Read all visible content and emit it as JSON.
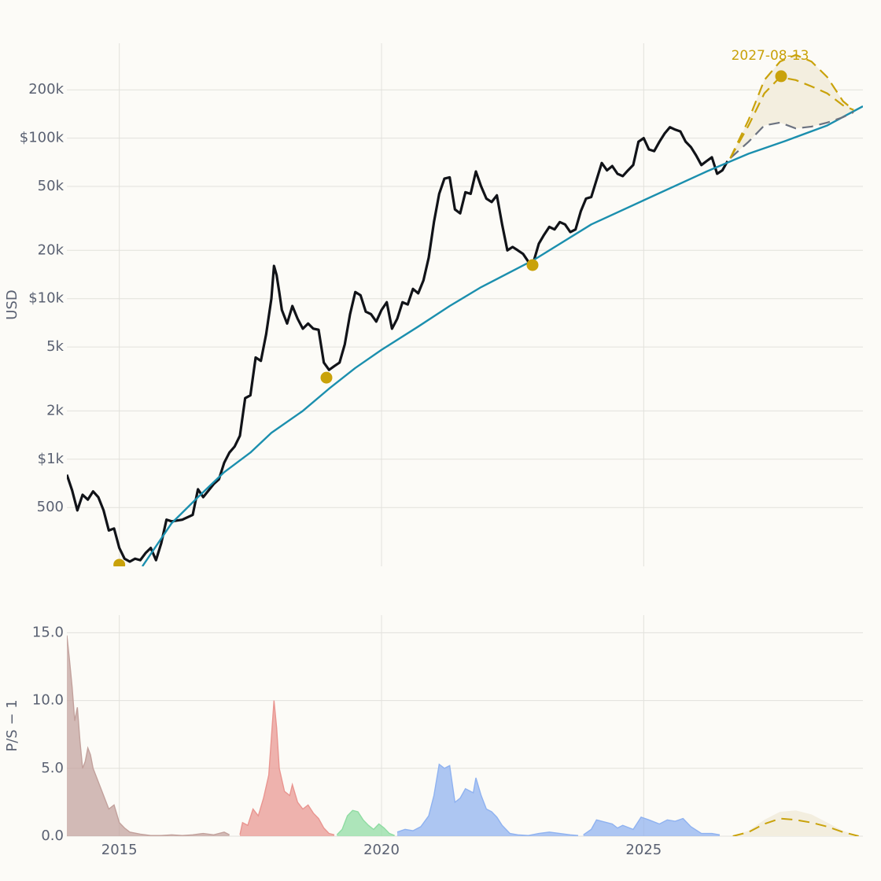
{
  "chart_data": [
    {
      "type": "line",
      "ylabel": "USD",
      "y_scale": "log",
      "grid": true,
      "xlim": [
        2014.0,
        2029.18
      ],
      "xticks": [
        2015,
        2020,
        2025
      ],
      "ylim": [
        215,
        390000
      ],
      "yticks": [
        500,
        {
          "value": 1000,
          "label": "$1k"
        },
        {
          "value": 2000,
          "label": "2k"
        },
        {
          "value": 5000,
          "label": "5k"
        },
        {
          "value": 10000,
          "label": "$10k"
        },
        {
          "value": 20000,
          "label": "20k"
        },
        {
          "value": 50000,
          "label": "50k"
        },
        {
          "value": 100000,
          "label": "$100k"
        },
        {
          "value": 200000,
          "label": "200k"
        }
      ],
      "series": [
        {
          "color": "#111318",
          "width": 3.2,
          "x": [
            2014.0,
            2014.1,
            2014.2,
            2014.3,
            2014.4,
            2014.5,
            2014.6,
            2014.7,
            2014.8,
            2014.9,
            2015.0,
            2015.1,
            2015.2,
            2015.3,
            2015.4,
            2015.5,
            2015.6,
            2015.7,
            2015.8,
            2015.9,
            2016.0,
            2016.2,
            2016.4,
            2016.5,
            2016.6,
            2016.8,
            2016.9,
            2017.0,
            2017.1,
            2017.2,
            2017.3,
            2017.4,
            2017.5,
            2017.6,
            2017.7,
            2017.8,
            2017.9,
            2017.95,
            2018.0,
            2018.05,
            2018.1,
            2018.2,
            2018.3,
            2018.4,
            2018.5,
            2018.6,
            2018.7,
            2018.8,
            2018.9,
            2019.0,
            2019.1,
            2019.2,
            2019.3,
            2019.4,
            2019.5,
            2019.6,
            2019.7,
            2019.8,
            2019.9,
            2020.0,
            2020.1,
            2020.2,
            2020.3,
            2020.4,
            2020.5,
            2020.6,
            2020.7,
            2020.8,
            2020.9,
            2021.0,
            2021.1,
            2021.2,
            2021.3,
            2021.4,
            2021.5,
            2021.6,
            2021.7,
            2021.8,
            2021.9,
            2022.0,
            2022.1,
            2022.2,
            2022.3,
            2022.4,
            2022.5,
            2022.6,
            2022.7,
            2022.8,
            2022.9,
            2023.0,
            2023.1,
            2023.2,
            2023.3,
            2023.4,
            2023.5,
            2023.6,
            2023.7,
            2023.8,
            2023.9,
            2024.0,
            2024.2,
            2024.3,
            2024.4,
            2024.5,
            2024.6,
            2024.7,
            2024.8,
            2024.9,
            2025.0,
            2025.1,
            2025.2,
            2025.3,
            2025.4,
            2025.5,
            2025.6,
            2025.7,
            2025.8,
            2025.9,
            2026.0,
            2026.1,
            2026.2,
            2026.3,
            2026.4,
            2026.5,
            2026.6
          ],
          "values": [
            800,
            640,
            480,
            600,
            560,
            630,
            580,
            480,
            360,
            370,
            280,
            240,
            230,
            240,
            235,
            260,
            280,
            235,
            300,
            420,
            410,
            420,
            450,
            650,
            580,
            700,
            750,
            950,
            1100,
            1200,
            1400,
            2400,
            2500,
            4300,
            4100,
            6000,
            10000,
            16000,
            14000,
            11000,
            8500,
            7000,
            9000,
            7500,
            6500,
            7000,
            6500,
            6400,
            4000,
            3600,
            3800,
            4000,
            5200,
            8000,
            11000,
            10500,
            8300,
            8000,
            7200,
            8500,
            9500,
            6500,
            7500,
            9500,
            9200,
            11500,
            10800,
            13000,
            18000,
            30000,
            45000,
            56000,
            57000,
            36000,
            34000,
            46000,
            45000,
            62000,
            50000,
            42000,
            40000,
            44000,
            29000,
            20000,
            21000,
            20000,
            19000,
            17000,
            17000,
            22000,
            25000,
            28000,
            27000,
            30000,
            29000,
            26000,
            27000,
            35000,
            42000,
            43000,
            70000,
            63000,
            67000,
            60000,
            58000,
            63000,
            68000,
            95000,
            100000,
            85000,
            83000,
            95000,
            107000,
            117000,
            113000,
            110000,
            95000,
            88000,
            78000,
            68000,
            72000,
            76000,
            60000,
            63000,
            72000
          ]
        },
        {
          "color": "#1b8fae",
          "width": 2.4,
          "x": [
            2015.44,
            2016.0,
            2016.5,
            2017.0,
            2017.5,
            2017.9,
            2018.5,
            2019.0,
            2019.5,
            2020.0,
            2020.7,
            2021.3,
            2021.9,
            2022.9,
            2024.0,
            2025.0,
            2026.2,
            2027.0,
            2027.7,
            2028.5,
            2029.18
          ],
          "values": [
            215,
            400,
            580,
            830,
            1100,
            1460,
            2000,
            2750,
            3700,
            4800,
            6700,
            9000,
            11800,
            17400,
            29000,
            41000,
            62000,
            80000,
            96000,
            120000,
            158000
          ]
        }
      ],
      "forecast": {
        "color": "#c9a20a",
        "low_color": "#6b7280",
        "fill": "#f3eedf",
        "x": [
          2026.65,
          2027.0,
          2027.3,
          2027.6,
          2027.9,
          2028.2,
          2028.5,
          2028.8,
          2029.0
        ],
        "high": [
          75000,
          130000,
          230000,
          300000,
          330000,
          300000,
          240000,
          170000,
          150000
        ],
        "mid": [
          75000,
          120000,
          190000,
          240000,
          230000,
          210000,
          190000,
          160000,
          150000
        ],
        "low": [
          75000,
          95000,
          120000,
          125000,
          115000,
          118000,
          125000,
          135000,
          145000
        ]
      },
      "markers": {
        "color": "#c9a20a",
        "x": [
          2015.0,
          2018.95,
          2022.88,
          2027.62
        ],
        "values": [
          220,
          3220,
          16200,
          243000
        ],
        "labels": [
          null,
          null,
          null,
          "2027-08-13"
        ]
      }
    },
    {
      "type": "area",
      "ylabel": "P/S − 1",
      "grid": true,
      "xlim": [
        2014.0,
        2029.18
      ],
      "xticks": [
        2015,
        2020,
        2025
      ],
      "ylim": [
        0,
        16.3
      ],
      "yticks": [
        {
          "value": 0,
          "label": "0.0"
        },
        {
          "value": 5,
          "label": "5.0"
        },
        {
          "value": 10,
          "label": "10.0"
        },
        {
          "value": 15,
          "label": "15.0"
        }
      ],
      "series": [
        {
          "color": "#c2a19c",
          "x": [
            2014.0,
            2014.05,
            2014.1,
            2014.15,
            2014.2,
            2014.25,
            2014.3,
            2014.35,
            2014.4,
            2014.45,
            2014.5,
            2014.6,
            2014.7,
            2014.8,
            2014.9,
            2015.0,
            2015.1,
            2015.2,
            2015.4,
            2015.6,
            2015.8,
            2016.0,
            2016.2,
            2016.4,
            2016.6,
            2016.8,
            2017.0,
            2017.1
          ],
          "values": [
            14.8,
            13,
            11,
            8.5,
            9.5,
            7,
            5,
            5.5,
            6.5,
            6,
            5,
            4,
            3,
            2,
            2.3,
            1,
            0.6,
            0.3,
            0.15,
            0.05,
            0.05,
            0.1,
            0.05,
            0.1,
            0.2,
            0.1,
            0.3,
            0.1
          ]
        },
        {
          "color": "#e99590",
          "x": [
            2017.3,
            2017.35,
            2017.45,
            2017.55,
            2017.65,
            2017.75,
            2017.85,
            2017.95,
            2018.0,
            2018.05,
            2018.15,
            2018.25,
            2018.3,
            2018.4,
            2018.5,
            2018.6,
            2018.7,
            2018.8,
            2018.9,
            2019.0,
            2019.1
          ],
          "values": [
            0.1,
            1,
            0.8,
            2,
            1.5,
            2.8,
            4.5,
            10,
            8,
            5,
            3.3,
            3,
            3.8,
            2.5,
            2,
            2.3,
            1.7,
            1.3,
            0.6,
            0.2,
            0.1
          ]
        },
        {
          "color": "#8fdca2",
          "x": [
            2019.15,
            2019.25,
            2019.35,
            2019.45,
            2019.55,
            2019.65,
            2019.75,
            2019.85,
            2019.95,
            2020.05,
            2020.15,
            2020.25
          ],
          "values": [
            0.1,
            0.5,
            1.5,
            1.9,
            1.8,
            1.2,
            0.8,
            0.5,
            0.9,
            0.6,
            0.2,
            0.05
          ]
        },
        {
          "color": "#8fb2f0",
          "x": [
            2020.3,
            2020.45,
            2020.6,
            2020.75,
            2020.9,
            2021.0,
            2021.1,
            2021.2,
            2021.3,
            2021.4,
            2021.5,
            2021.6,
            2021.75,
            2021.8,
            2021.9,
            2022.0,
            2022.1,
            2022.2,
            2022.3,
            2022.45,
            2022.6,
            2022.8,
            2023.0,
            2023.2,
            2023.4,
            2023.6,
            2023.75
          ],
          "values": [
            0.3,
            0.5,
            0.4,
            0.7,
            1.5,
            3,
            5.3,
            5,
            5.2,
            2.5,
            2.8,
            3.5,
            3.2,
            4.3,
            3,
            2,
            1.8,
            1.4,
            0.8,
            0.2,
            0.1,
            0.05,
            0.2,
            0.3,
            0.2,
            0.1,
            0.05
          ]
        },
        {
          "color": "#8fb2f0",
          "x": [
            2023.85,
            2024.0,
            2024.1,
            2024.2,
            2024.4,
            2024.5,
            2024.6,
            2024.8,
            2024.95,
            2025.1,
            2025.3,
            2025.45,
            2025.6,
            2025.75,
            2025.9,
            2026.1,
            2026.3,
            2026.45
          ],
          "values": [
            0.1,
            0.5,
            1.2,
            1.1,
            0.9,
            0.6,
            0.8,
            0.5,
            1.4,
            1.2,
            0.9,
            1.2,
            1.1,
            1.3,
            0.7,
            0.2,
            0.2,
            0.1
          ]
        }
      ],
      "forecast": {
        "color": "#c9a20a",
        "fill": "#f3eedf",
        "x": [
          2026.7,
          2027.0,
          2027.3,
          2027.6,
          2027.9,
          2028.2,
          2028.5,
          2028.8,
          2029.1
        ],
        "high": [
          0,
          0.4,
          1.2,
          1.8,
          1.9,
          1.6,
          1.0,
          0.4,
          0
        ],
        "mid": [
          0,
          0.3,
          0.9,
          1.3,
          1.2,
          1.0,
          0.7,
          0.3,
          0
        ]
      }
    }
  ]
}
